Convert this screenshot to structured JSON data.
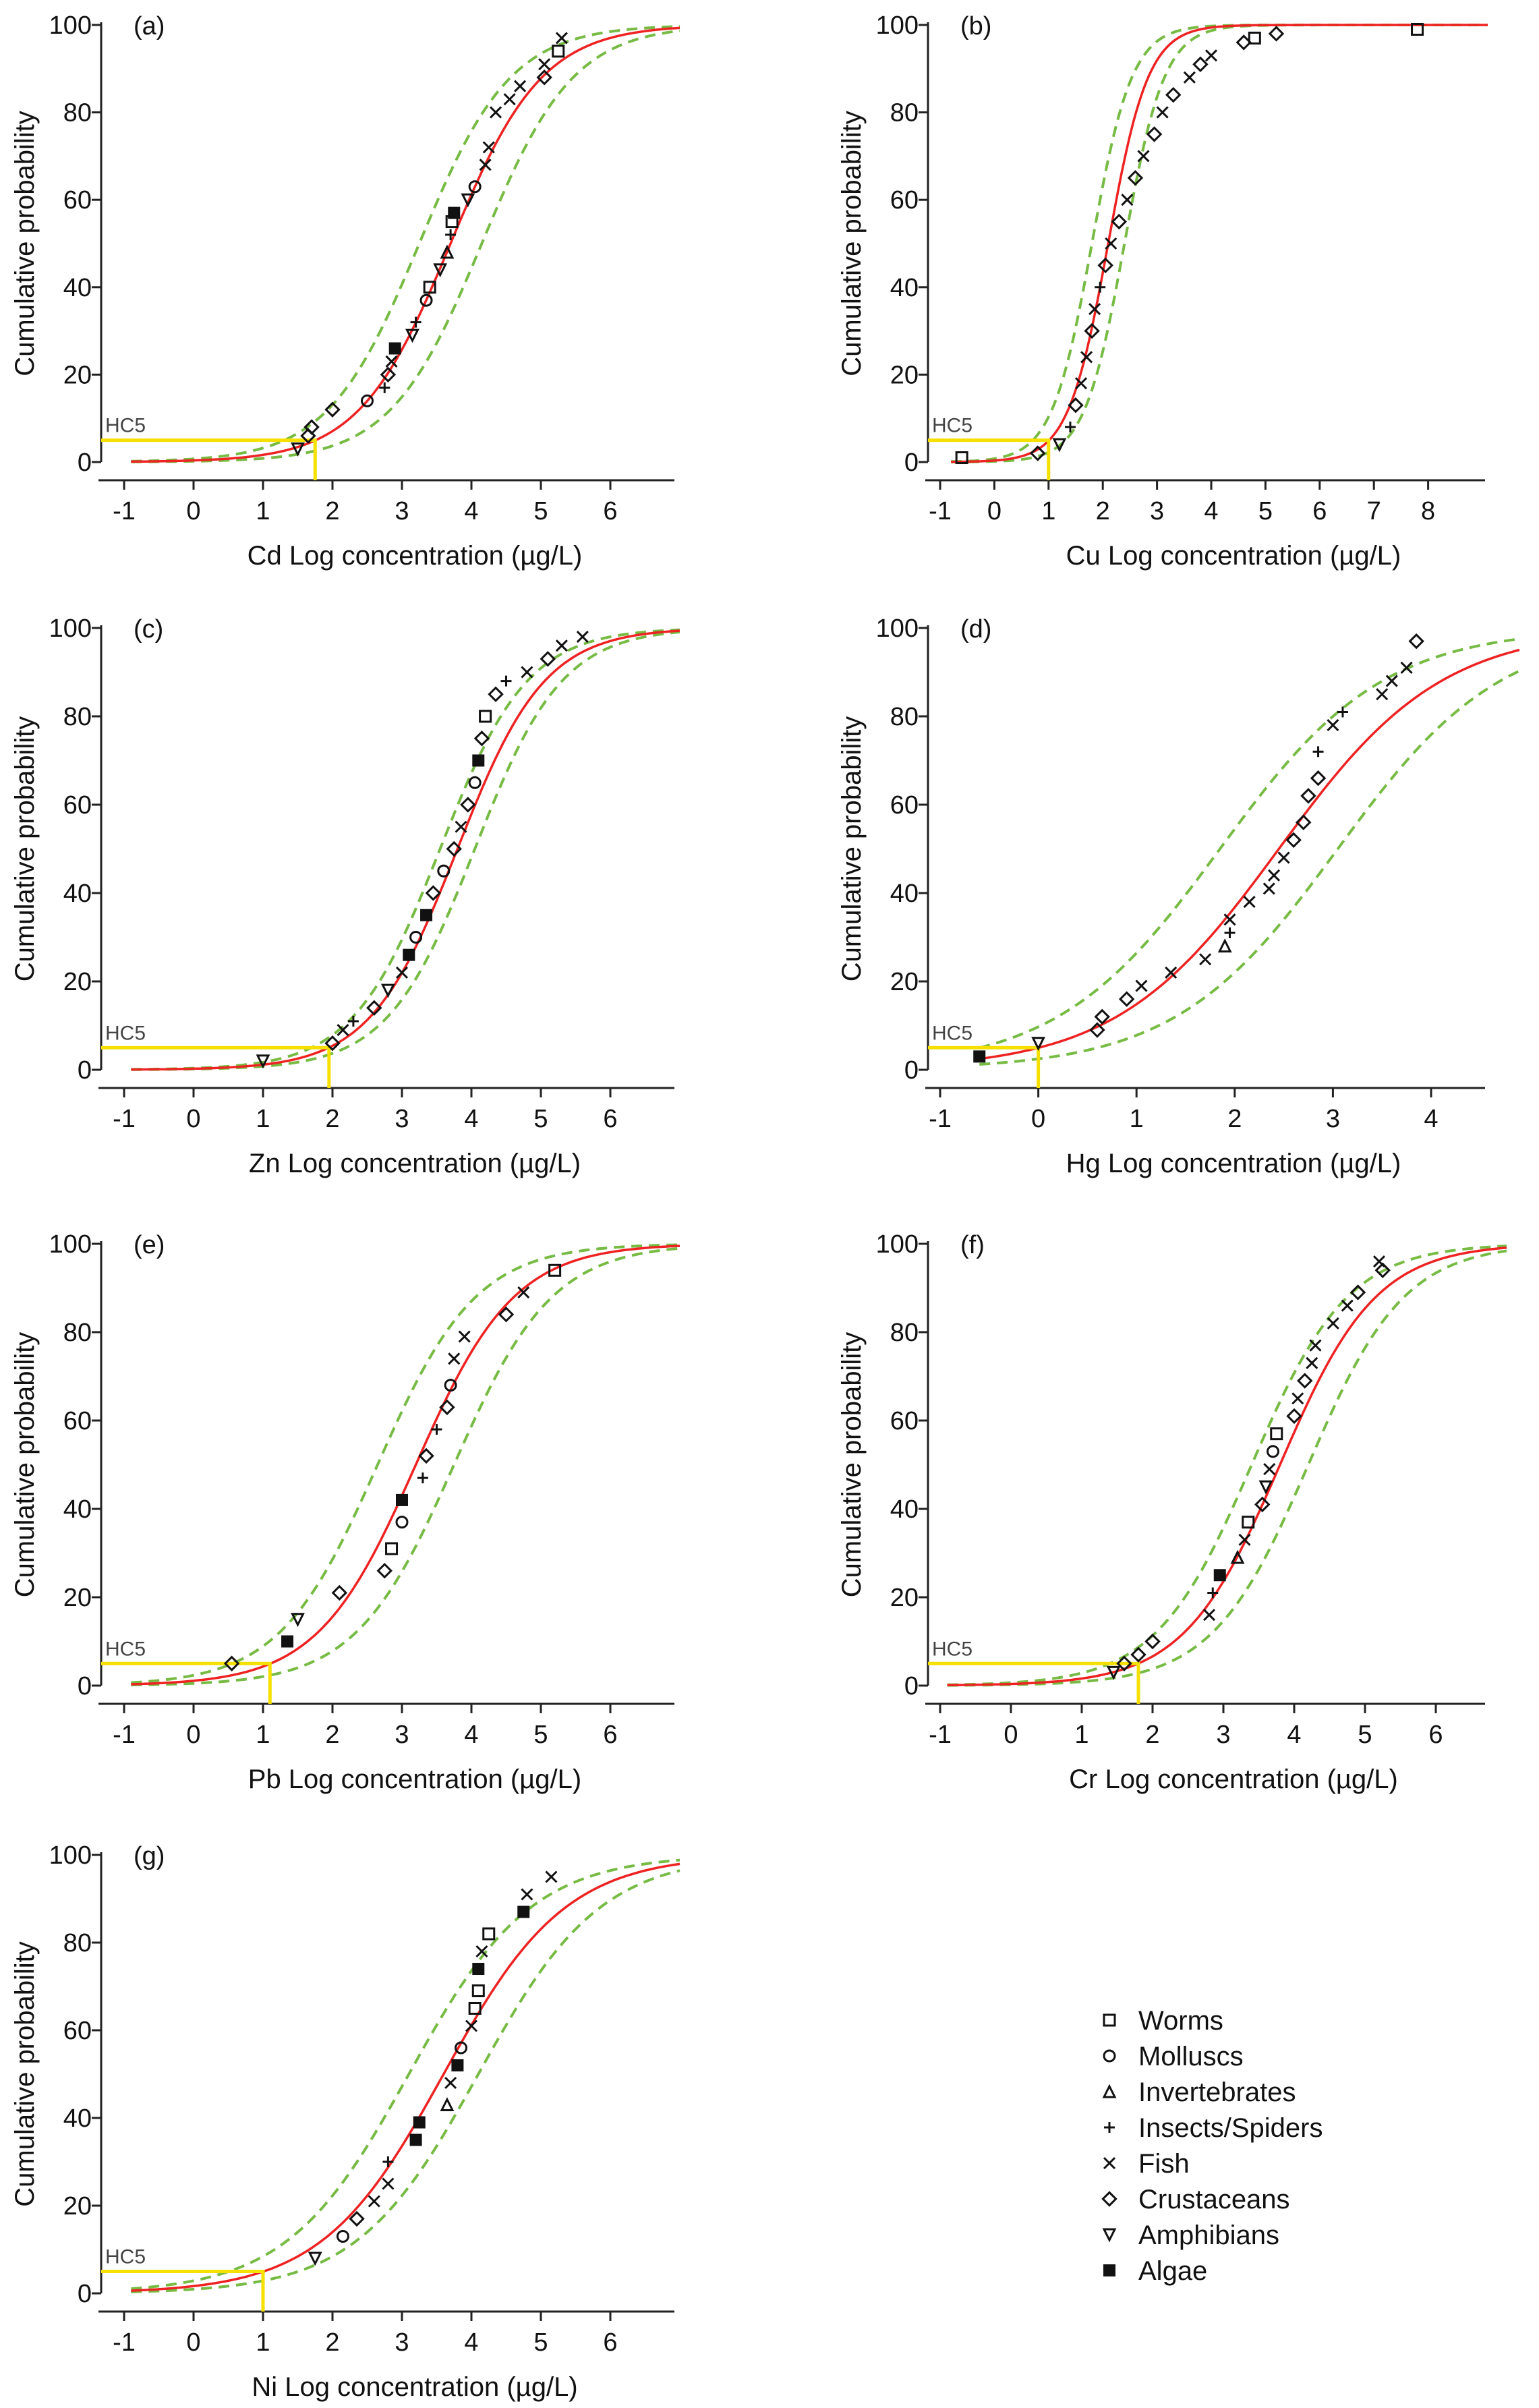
{
  "chart_data": [
    {
      "id": "a",
      "type": "scatter",
      "panel_label": "(a)",
      "xlabel": "Cd Log concentration (µg/L)",
      "ylabel": "Cumulative probability",
      "xticks": [
        -1,
        0,
        1,
        2,
        3,
        4,
        5,
        6
      ],
      "xlim": [
        -1.3,
        7
      ],
      "yticks": [
        0,
        20,
        40,
        60,
        80,
        100
      ],
      "ylim": [
        0,
        100
      ],
      "fit": {
        "x50": 3.7,
        "scale": 0.66,
        "band_offset": 0.45,
        "xstart": -0.9
      },
      "hc5_label": "HC5",
      "hc5": 1.75,
      "points": [
        [
          1.5,
          3,
          "A"
        ],
        [
          1.65,
          6,
          "C"
        ],
        [
          1.7,
          8,
          "C"
        ],
        [
          2.0,
          12,
          "C"
        ],
        [
          2.5,
          14,
          "M"
        ],
        [
          2.75,
          17,
          "S"
        ],
        [
          2.8,
          20,
          "C"
        ],
        [
          2.85,
          23,
          "F"
        ],
        [
          2.9,
          26,
          "G"
        ],
        [
          3.15,
          29,
          "A"
        ],
        [
          3.2,
          32,
          "S"
        ],
        [
          3.35,
          37,
          "M"
        ],
        [
          3.4,
          40,
          "W"
        ],
        [
          3.55,
          44,
          "A"
        ],
        [
          3.65,
          48,
          "I"
        ],
        [
          3.7,
          52,
          "S"
        ],
        [
          3.72,
          55,
          "W"
        ],
        [
          3.75,
          57,
          "G"
        ],
        [
          3.95,
          60,
          "A"
        ],
        [
          4.05,
          63,
          "M"
        ],
        [
          4.2,
          68,
          "F"
        ],
        [
          4.25,
          72,
          "F"
        ],
        [
          4.35,
          80,
          "F"
        ],
        [
          4.55,
          83,
          "F"
        ],
        [
          4.7,
          86,
          "F"
        ],
        [
          5.05,
          88,
          "C"
        ],
        [
          5.05,
          91,
          "F"
        ],
        [
          5.25,
          94,
          "W"
        ],
        [
          5.3,
          97,
          "F"
        ]
      ]
    },
    {
      "id": "b",
      "type": "scatter",
      "panel_label": "(b)",
      "xlabel": "Cu Log concentration (µg/L)",
      "ylabel": "Cumulative probability",
      "xticks": [
        -1,
        0,
        1,
        2,
        3,
        4,
        5,
        6,
        7,
        8
      ],
      "xlim": [
        -1.2,
        9.1
      ],
      "yticks": [
        0,
        20,
        40,
        60,
        80,
        100
      ],
      "ylim": [
        0,
        100
      ],
      "fit": {
        "x50": 2.1,
        "scale": 0.37,
        "band_offset": 0.3,
        "xstart": -0.8
      },
      "hc5_label": "HC5",
      "hc5": 1.0,
      "points": [
        [
          -0.6,
          1,
          "W"
        ],
        [
          0.8,
          2,
          "C"
        ],
        [
          1.2,
          4,
          "A"
        ],
        [
          1.4,
          8,
          "S"
        ],
        [
          1.5,
          13,
          "C"
        ],
        [
          1.6,
          18,
          "F"
        ],
        [
          1.7,
          24,
          "F"
        ],
        [
          1.8,
          30,
          "C"
        ],
        [
          1.85,
          35,
          "F"
        ],
        [
          1.95,
          40,
          "S"
        ],
        [
          2.05,
          45,
          "C"
        ],
        [
          2.15,
          50,
          "F"
        ],
        [
          2.3,
          55,
          "C"
        ],
        [
          2.45,
          60,
          "F"
        ],
        [
          2.6,
          65,
          "C"
        ],
        [
          2.75,
          70,
          "F"
        ],
        [
          2.95,
          75,
          "C"
        ],
        [
          3.1,
          80,
          "F"
        ],
        [
          3.3,
          84,
          "C"
        ],
        [
          3.6,
          88,
          "F"
        ],
        [
          3.8,
          91,
          "C"
        ],
        [
          4.0,
          93,
          "F"
        ],
        [
          4.6,
          96,
          "C"
        ],
        [
          4.8,
          97,
          "W"
        ],
        [
          5.2,
          98,
          "C"
        ],
        [
          7.8,
          99,
          "W"
        ]
      ]
    },
    {
      "id": "c",
      "type": "scatter",
      "panel_label": "(c)",
      "xlabel": "Zn Log concentration (µg/L)",
      "ylabel": "Cumulative probability",
      "xticks": [
        -1,
        0,
        1,
        2,
        3,
        4,
        5,
        6
      ],
      "xlim": [
        -1.3,
        7
      ],
      "yticks": [
        0,
        20,
        40,
        60,
        80,
        100
      ],
      "ylim": [
        0,
        100
      ],
      "fit": {
        "x50": 3.8,
        "scale": 0.63,
        "band_offset": 0.25,
        "xstart": -0.9
      },
      "hc5_label": "HC5",
      "hc5": 1.95,
      "points": [
        [
          1.0,
          2,
          "A"
        ],
        [
          2.0,
          6,
          "C"
        ],
        [
          2.15,
          9,
          "F"
        ],
        [
          2.3,
          11,
          "S"
        ],
        [
          2.6,
          14,
          "C"
        ],
        [
          2.8,
          18,
          "A"
        ],
        [
          3.0,
          22,
          "F"
        ],
        [
          3.1,
          26,
          "G"
        ],
        [
          3.2,
          30,
          "M"
        ],
        [
          3.35,
          35,
          "G"
        ],
        [
          3.45,
          40,
          "C"
        ],
        [
          3.6,
          45,
          "M"
        ],
        [
          3.75,
          50,
          "C"
        ],
        [
          3.85,
          55,
          "F"
        ],
        [
          3.95,
          60,
          "C"
        ],
        [
          4.05,
          65,
          "M"
        ],
        [
          4.1,
          70,
          "G"
        ],
        [
          4.15,
          75,
          "C"
        ],
        [
          4.2,
          80,
          "W"
        ],
        [
          4.35,
          85,
          "C"
        ],
        [
          4.5,
          88,
          "S"
        ],
        [
          4.8,
          90,
          "F"
        ],
        [
          5.1,
          93,
          "C"
        ],
        [
          5.3,
          96,
          "F"
        ],
        [
          5.6,
          98,
          "F"
        ]
      ]
    },
    {
      "id": "d",
      "type": "scatter",
      "panel_label": "(d)",
      "xlabel": "Hg Log concentration (µg/L)",
      "ylabel": "Cumulative probability",
      "xticks": [
        -1,
        0,
        1,
        2,
        3,
        4
      ],
      "xlim": [
        -1.2,
        4.9
      ],
      "yticks": [
        0,
        20,
        40,
        60,
        80,
        100
      ],
      "ylim": [
        0,
        100
      ],
      "fit": {
        "x50": 2.45,
        "scale": 0.83,
        "band_offset": 0.6,
        "xstart": -0.6
      },
      "hc5_label": "HC5",
      "hc5": 0.0,
      "points": [
        [
          -0.6,
          3,
          "G"
        ],
        [
          0.0,
          6,
          "A"
        ],
        [
          0.6,
          9,
          "C"
        ],
        [
          0.65,
          12,
          "C"
        ],
        [
          0.9,
          16,
          "C"
        ],
        [
          1.05,
          19,
          "F"
        ],
        [
          1.35,
          22,
          "F"
        ],
        [
          1.7,
          25,
          "F"
        ],
        [
          1.9,
          28,
          "I"
        ],
        [
          1.95,
          31,
          "S"
        ],
        [
          1.95,
          34,
          "F"
        ],
        [
          2.15,
          38,
          "F"
        ],
        [
          2.35,
          41,
          "F"
        ],
        [
          2.4,
          44,
          "F"
        ],
        [
          2.5,
          48,
          "F"
        ],
        [
          2.6,
          52,
          "C"
        ],
        [
          2.7,
          56,
          "C"
        ],
        [
          2.75,
          62,
          "C"
        ],
        [
          2.85,
          66,
          "C"
        ],
        [
          2.85,
          72,
          "S"
        ],
        [
          3.0,
          78,
          "F"
        ],
        [
          3.1,
          81,
          "S"
        ],
        [
          3.5,
          85,
          "F"
        ],
        [
          3.6,
          88,
          "F"
        ],
        [
          3.75,
          91,
          "F"
        ],
        [
          3.85,
          97,
          "C"
        ]
      ]
    },
    {
      "id": "e",
      "type": "scatter",
      "panel_label": "(e)",
      "xlabel": "Pb Log concentration (µg/L)",
      "ylabel": "Cumulative probability",
      "xticks": [
        -1,
        0,
        1,
        2,
        3,
        4,
        5,
        6
      ],
      "xlim": [
        -1.3,
        7
      ],
      "yticks": [
        0,
        20,
        40,
        60,
        80,
        100
      ],
      "ylim": [
        0,
        100
      ],
      "fit": {
        "x50": 3.2,
        "scale": 0.71,
        "band_offset": 0.55,
        "xstart": -0.9
      },
      "hc5_label": "HC5",
      "hc5": 1.1,
      "points": [
        [
          0.55,
          5,
          "C"
        ],
        [
          1.35,
          10,
          "G"
        ],
        [
          1.5,
          15,
          "A"
        ],
        [
          2.1,
          21,
          "C"
        ],
        [
          2.75,
          26,
          "C"
        ],
        [
          2.85,
          31,
          "W"
        ],
        [
          3.0,
          37,
          "M"
        ],
        [
          3.0,
          42,
          "G"
        ],
        [
          3.3,
          47,
          "S"
        ],
        [
          3.35,
          52,
          "C"
        ],
        [
          3.5,
          58,
          "S"
        ],
        [
          3.65,
          63,
          "C"
        ],
        [
          3.7,
          68,
          "M"
        ],
        [
          3.75,
          74,
          "F"
        ],
        [
          3.9,
          79,
          "F"
        ],
        [
          4.5,
          84,
          "C"
        ],
        [
          4.75,
          89,
          "F"
        ],
        [
          5.2,
          94,
          "W"
        ]
      ]
    },
    {
      "id": "f",
      "type": "scatter",
      "panel_label": "(f)",
      "xlabel": "Cr Log concentration (µg/L)",
      "ylabel": "Cumulative probability",
      "xticks": [
        -1,
        0,
        1,
        2,
        3,
        4,
        5,
        6
      ],
      "xlim": [
        -1.2,
        7
      ],
      "yticks": [
        0,
        20,
        40,
        60,
        80,
        100
      ],
      "ylim": [
        0,
        100
      ],
      "fit": {
        "x50": 3.8,
        "scale": 0.68,
        "band_offset": 0.4,
        "xstart": -0.9
      },
      "hc5_label": "HC5",
      "hc5": 1.8,
      "points": [
        [
          1.45,
          3,
          "A"
        ],
        [
          1.6,
          5,
          "C"
        ],
        [
          1.8,
          7,
          "C"
        ],
        [
          2.0,
          10,
          "C"
        ],
        [
          2.8,
          16,
          "F"
        ],
        [
          2.85,
          21,
          "S"
        ],
        [
          2.95,
          25,
          "G"
        ],
        [
          3.2,
          29,
          "I"
        ],
        [
          3.3,
          33,
          "F"
        ],
        [
          3.35,
          37,
          "W"
        ],
        [
          3.55,
          41,
          "C"
        ],
        [
          3.6,
          45,
          "A"
        ],
        [
          3.65,
          49,
          "F"
        ],
        [
          3.7,
          53,
          "M"
        ],
        [
          3.75,
          57,
          "W"
        ],
        [
          4.0,
          61,
          "C"
        ],
        [
          4.05,
          65,
          "F"
        ],
        [
          4.15,
          69,
          "C"
        ],
        [
          4.25,
          73,
          "F"
        ],
        [
          4.3,
          77,
          "F"
        ],
        [
          4.55,
          82,
          "F"
        ],
        [
          4.75,
          86,
          "F"
        ],
        [
          4.9,
          89,
          "C"
        ],
        [
          5.25,
          94,
          "C"
        ],
        [
          5.2,
          96,
          "F"
        ]
      ]
    },
    {
      "id": "g",
      "type": "scatter",
      "panel_label": "(g)",
      "xlabel": "Ni Log concentration (µg/L)",
      "ylabel": "Cumulative probability",
      "xticks": [
        -1,
        0,
        1,
        2,
        3,
        4,
        5,
        6
      ],
      "xlim": [
        -1.3,
        7
      ],
      "yticks": [
        0,
        20,
        40,
        60,
        80,
        100
      ],
      "ylim": [
        0,
        100
      ],
      "fit": {
        "x50": 3.6,
        "scale": 0.88,
        "band_offset": 0.5,
        "xstart": -0.9
      },
      "hc5_label": "HC5",
      "hc5": 1.0,
      "points": [
        [
          1.75,
          8,
          "A"
        ],
        [
          2.15,
          13,
          "M"
        ],
        [
          2.35,
          17,
          "C"
        ],
        [
          2.6,
          21,
          "F"
        ],
        [
          2.8,
          25,
          "F"
        ],
        [
          2.8,
          30,
          "S"
        ],
        [
          3.2,
          35,
          "G"
        ],
        [
          3.25,
          39,
          "G"
        ],
        [
          3.65,
          43,
          "I"
        ],
        [
          3.7,
          48,
          "F"
        ],
        [
          3.8,
          52,
          "G"
        ],
        [
          3.85,
          56,
          "M"
        ],
        [
          4.0,
          61,
          "F"
        ],
        [
          4.05,
          65,
          "W"
        ],
        [
          4.1,
          69,
          "W"
        ],
        [
          4.1,
          74,
          "G"
        ],
        [
          4.15,
          78,
          "F"
        ],
        [
          4.25,
          82,
          "W"
        ],
        [
          4.75,
          87,
          "G"
        ],
        [
          4.8,
          91,
          "F"
        ],
        [
          5.15,
          95,
          "F"
        ]
      ]
    }
  ],
  "legend": [
    {
      "code": "W",
      "label": "Worms",
      "marker": "square"
    },
    {
      "code": "M",
      "label": "Molluscs",
      "marker": "circle"
    },
    {
      "code": "I",
      "label": "Invertebrates",
      "marker": "triangle"
    },
    {
      "code": "S",
      "label": "Insects/Spiders",
      "marker": "plus"
    },
    {
      "code": "F",
      "label": "Fish",
      "marker": "cross"
    },
    {
      "code": "C",
      "label": "Crustaceans",
      "marker": "diamond"
    },
    {
      "code": "A",
      "label": "Amphibians",
      "marker": "triangle-down"
    },
    {
      "code": "G",
      "label": "Algae",
      "marker": "filled-square"
    }
  ],
  "colors": {
    "fit": "#ee2222",
    "band": "#77bb44",
    "hc5": "#f5e000",
    "axis": "#222222",
    "marker": "#111111"
  }
}
